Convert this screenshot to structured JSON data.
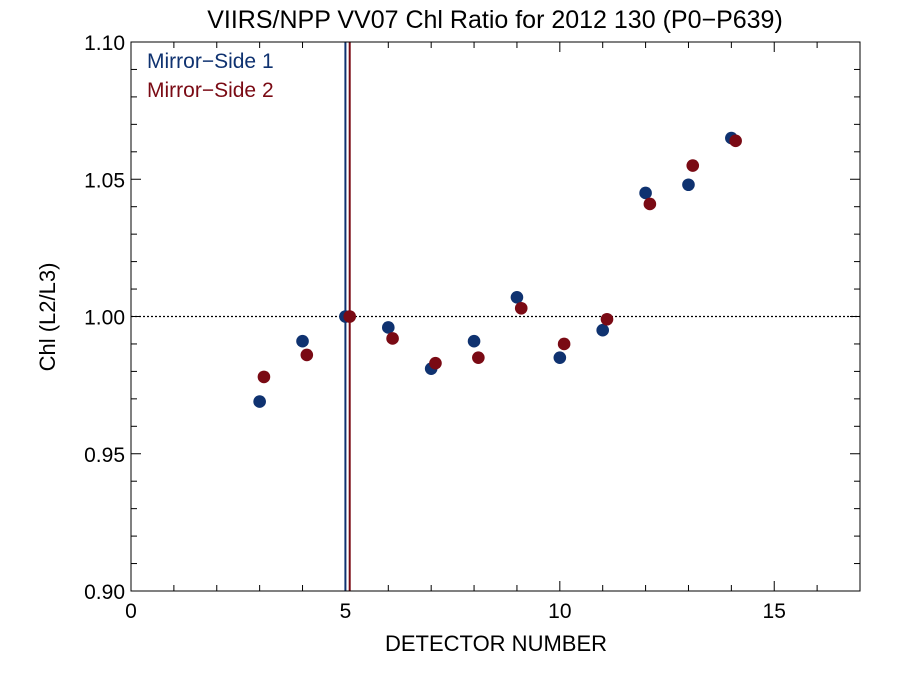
{
  "chart_data": {
    "type": "scatter",
    "title": "VIIRS/NPP VV07 Chl Ratio for 2012 130 (P0−P639)",
    "xlabel": "DETECTOR NUMBER",
    "ylabel": "Chl (L2/L3)",
    "xlim": [
      0,
      17
    ],
    "ylim": [
      0.9,
      1.1
    ],
    "x_ticks": [
      0,
      5,
      10,
      15
    ],
    "x_tick_labels": [
      "0",
      "5",
      "10",
      "15"
    ],
    "y_ticks": [
      0.9,
      0.95,
      1.0,
      1.05,
      1.1
    ],
    "y_tick_labels": [
      "0.90",
      "0.95",
      "1.00",
      "1.05",
      "1.10"
    ],
    "reference_line": {
      "y": 1.0,
      "style": "dotted"
    },
    "legend_position": "top-left",
    "series": [
      {
        "name": "Mirror−Side 1",
        "color": "#0f3270",
        "marker_line_x": 5,
        "points": [
          [
            3,
            0.969
          ],
          [
            4,
            0.991
          ],
          [
            5,
            1.0
          ],
          [
            6,
            0.996
          ],
          [
            7,
            0.981
          ],
          [
            8,
            0.991
          ],
          [
            9,
            1.007
          ],
          [
            10,
            0.985
          ],
          [
            11,
            0.995
          ],
          [
            12,
            1.045
          ],
          [
            13,
            1.048
          ],
          [
            14,
            1.065
          ]
        ]
      },
      {
        "name": "Mirror−Side 2",
        "color": "#7a0a14",
        "marker_line_x": 5.1,
        "points": [
          [
            3.1,
            0.978
          ],
          [
            4.1,
            0.986
          ],
          [
            5.1,
            1.0
          ],
          [
            6.1,
            0.992
          ],
          [
            7.1,
            0.983
          ],
          [
            8.1,
            0.985
          ],
          [
            9.1,
            1.003
          ],
          [
            10.1,
            0.99
          ],
          [
            11.1,
            0.999
          ],
          [
            12.1,
            1.041
          ],
          [
            13.1,
            1.055
          ],
          [
            14.1,
            1.064
          ]
        ]
      }
    ]
  }
}
